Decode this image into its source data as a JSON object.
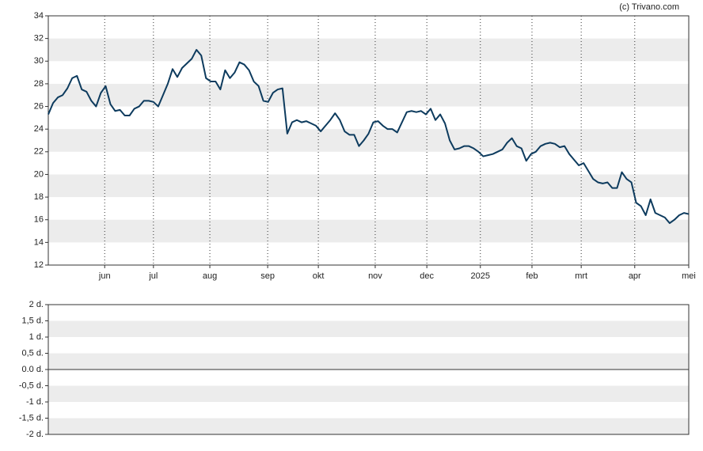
{
  "chart_data": [
    {
      "type": "line",
      "annotation": "(c) Trivano.com",
      "series": [
        {
          "color": "#0d3b5e",
          "values": [
            25.3,
            26.3,
            26.8,
            27.0,
            27.6,
            28.5,
            28.7,
            27.5,
            27.3,
            26.5,
            26.0,
            27.2,
            27.8,
            26.2,
            25.6,
            25.7,
            25.2,
            25.2,
            25.8,
            26.0,
            26.5,
            26.5,
            26.4,
            26.0,
            27.0,
            28.0,
            29.3,
            28.6,
            29.4,
            29.8,
            30.2,
            31.0,
            30.5,
            28.5,
            28.2,
            28.2,
            27.5,
            29.2,
            28.5,
            29.0,
            29.9,
            29.7,
            29.2,
            28.2,
            27.8,
            26.5,
            26.4,
            27.2,
            27.5,
            27.6,
            23.6,
            24.6,
            24.8,
            24.6,
            24.7,
            24.5,
            24.3,
            23.8,
            24.3,
            24.8,
            25.4,
            24.8,
            23.8,
            23.5,
            23.5,
            22.5,
            23.0,
            23.6,
            24.6,
            24.7,
            24.3,
            24.0,
            24.0,
            23.7,
            24.6,
            25.5,
            25.6,
            25.5,
            25.6,
            25.3,
            25.8,
            24.8,
            25.3,
            24.5,
            23.0,
            22.2,
            22.3,
            22.5,
            22.5,
            22.3,
            22.0,
            21.6,
            21.7,
            21.8,
            22.0,
            22.2,
            22.8,
            23.2,
            22.5,
            22.3,
            21.2,
            21.8,
            22.0,
            22.5,
            22.7,
            22.8,
            22.7,
            22.4,
            22.5,
            21.8,
            21.3,
            20.8,
            21.0,
            20.3,
            19.6,
            19.3,
            19.2,
            19.3,
            18.8,
            18.8,
            20.2,
            19.6,
            19.3,
            17.5,
            17.2,
            16.4,
            17.8,
            16.6,
            16.4,
            16.2,
            15.7,
            16.0,
            16.4,
            16.6,
            16.5
          ]
        }
      ],
      "xlim": [
        0,
        134
      ],
      "xticks": [
        {
          "value": 11.8,
          "label": "jun"
        },
        {
          "value": 22.0,
          "label": "jul"
        },
        {
          "value": 33.8,
          "label": "aug"
        },
        {
          "value": 45.9,
          "label": "sep"
        },
        {
          "value": 56.5,
          "label": "okt"
        },
        {
          "value": 68.4,
          "label": "nov"
        },
        {
          "value": 79.2,
          "label": "dec"
        },
        {
          "value": 90.4,
          "label": "2025"
        },
        {
          "value": 101.2,
          "label": "feb"
        },
        {
          "value": 111.5,
          "label": "mrt"
        },
        {
          "value": 122.7,
          "label": "apr"
        },
        {
          "value": 134,
          "label": "mei"
        }
      ],
      "ylim": [
        12,
        34
      ],
      "yticks": [
        12,
        14,
        16,
        18,
        20,
        22,
        24,
        26,
        28,
        30,
        32,
        34
      ],
      "grid": true
    },
    {
      "type": "line",
      "ylim": [
        -2,
        2
      ],
      "yticks": [
        {
          "value": -2,
          "label": "-2 d."
        },
        {
          "value": -1.5,
          "label": "-1,5 d."
        },
        {
          "value": -1,
          "label": "-1 d."
        },
        {
          "value": -0.5,
          "label": "-0,5 d."
        },
        {
          "value": 0,
          "label": "0.0 d."
        },
        {
          "value": 0.5,
          "label": "0,5 d."
        },
        {
          "value": 1,
          "label": "1 d."
        },
        {
          "value": 1.5,
          "label": "1,5 d."
        },
        {
          "value": 2,
          "label": "2 d."
        }
      ],
      "grid": true
    }
  ]
}
